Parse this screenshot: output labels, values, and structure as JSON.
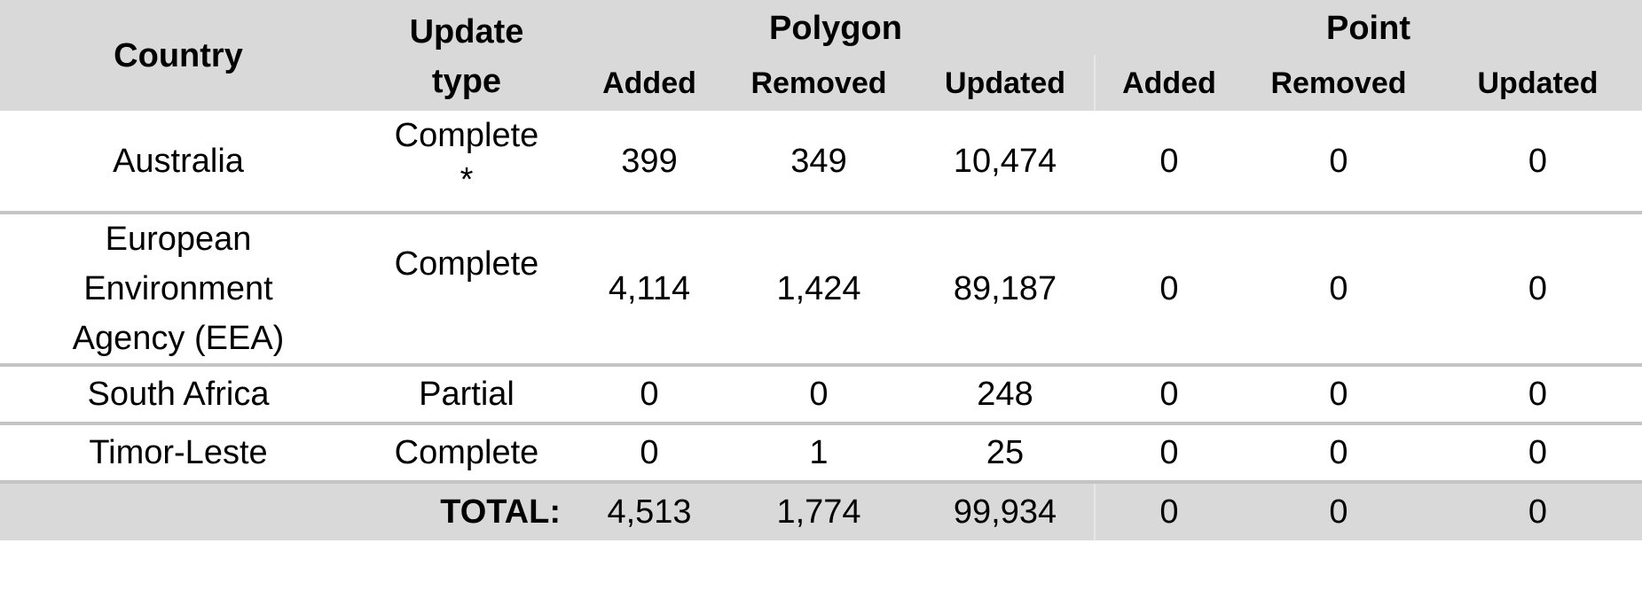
{
  "header": {
    "country": "Country",
    "update_type_line1": "Update",
    "update_type_line2": "type",
    "polygon": "Polygon",
    "point": "Point",
    "added": "Added",
    "removed": "Removed",
    "updated": "Updated"
  },
  "rows": [
    {
      "country": "Australia",
      "type_line1": "Complete",
      "type_line2": "*",
      "poly_added": "399",
      "poly_removed": "349",
      "poly_updated": "10,474",
      "pt_added": "0",
      "pt_removed": "0",
      "pt_updated": "0"
    },
    {
      "country_line1": "European",
      "country_line2": "Environment",
      "country_line3": "Agency (EEA)",
      "type": "Complete",
      "poly_added": "4,114",
      "poly_removed": "1,424",
      "poly_updated": "89,187",
      "pt_added": "0",
      "pt_removed": "0",
      "pt_updated": "0"
    },
    {
      "country": "South Africa",
      "type": "Partial",
      "poly_added": "0",
      "poly_removed": "0",
      "poly_updated": "248",
      "pt_added": "0",
      "pt_removed": "0",
      "pt_updated": "0"
    },
    {
      "country": "Timor-Leste",
      "type": "Complete",
      "poly_added": "0",
      "poly_removed": "1",
      "poly_updated": "25",
      "pt_added": "0",
      "pt_removed": "0",
      "pt_updated": "0"
    }
  ],
  "total": {
    "label": "TOTAL:",
    "poly_added": "4,513",
    "poly_removed": "1,774",
    "poly_updated": "99,934",
    "pt_added": "0",
    "pt_removed": "0",
    "pt_updated": "0"
  },
  "colors": {
    "header_bg": "#d9d9d9",
    "row_separator": "#c4c4c4",
    "body_bg": "#ffffff"
  }
}
